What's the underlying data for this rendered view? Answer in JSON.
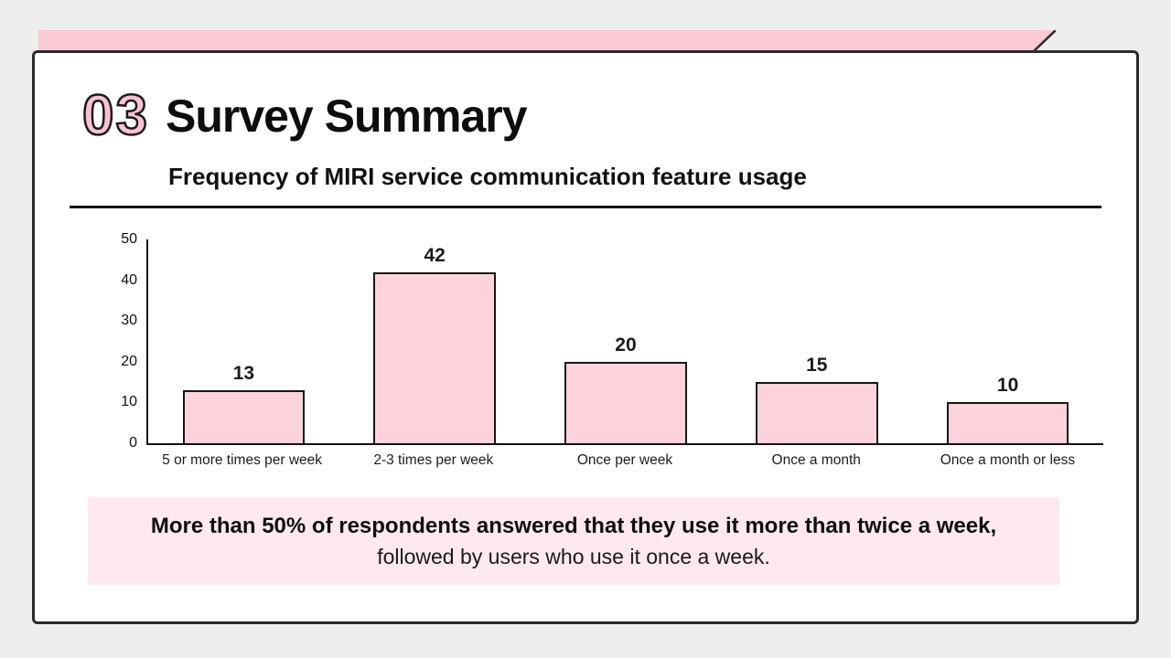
{
  "slide": {
    "badge": "03",
    "title": "Survey Summary",
    "subtitle": "Frequency of MIRI service communication feature usage"
  },
  "chart_data": {
    "type": "bar",
    "title": "Frequency of MIRI service communication feature usage",
    "categories": [
      "5 or more times per week",
      "2-3 times per week",
      "Once per week",
      "Once a month",
      "Once a month or less"
    ],
    "values": [
      13,
      42,
      20,
      15,
      10
    ],
    "xlabel": "",
    "ylabel": "",
    "ylim": [
      0,
      50
    ],
    "yticks": [
      0,
      10,
      20,
      30,
      40,
      50
    ],
    "grid": false,
    "legend": "none",
    "data_labels": true
  },
  "callout": {
    "line1": "More than 50% of respondents answered that they use it more than twice a week,",
    "line2": "followed by users who use it once a week."
  },
  "colors": {
    "bar_fill": "#fcd3dd",
    "bar_border": "#161616",
    "ribbon_pink": "#fbc9d4",
    "badge_pink": "#f9c2d0",
    "callout_bg": "#fde9ef",
    "ink": "#111111"
  }
}
